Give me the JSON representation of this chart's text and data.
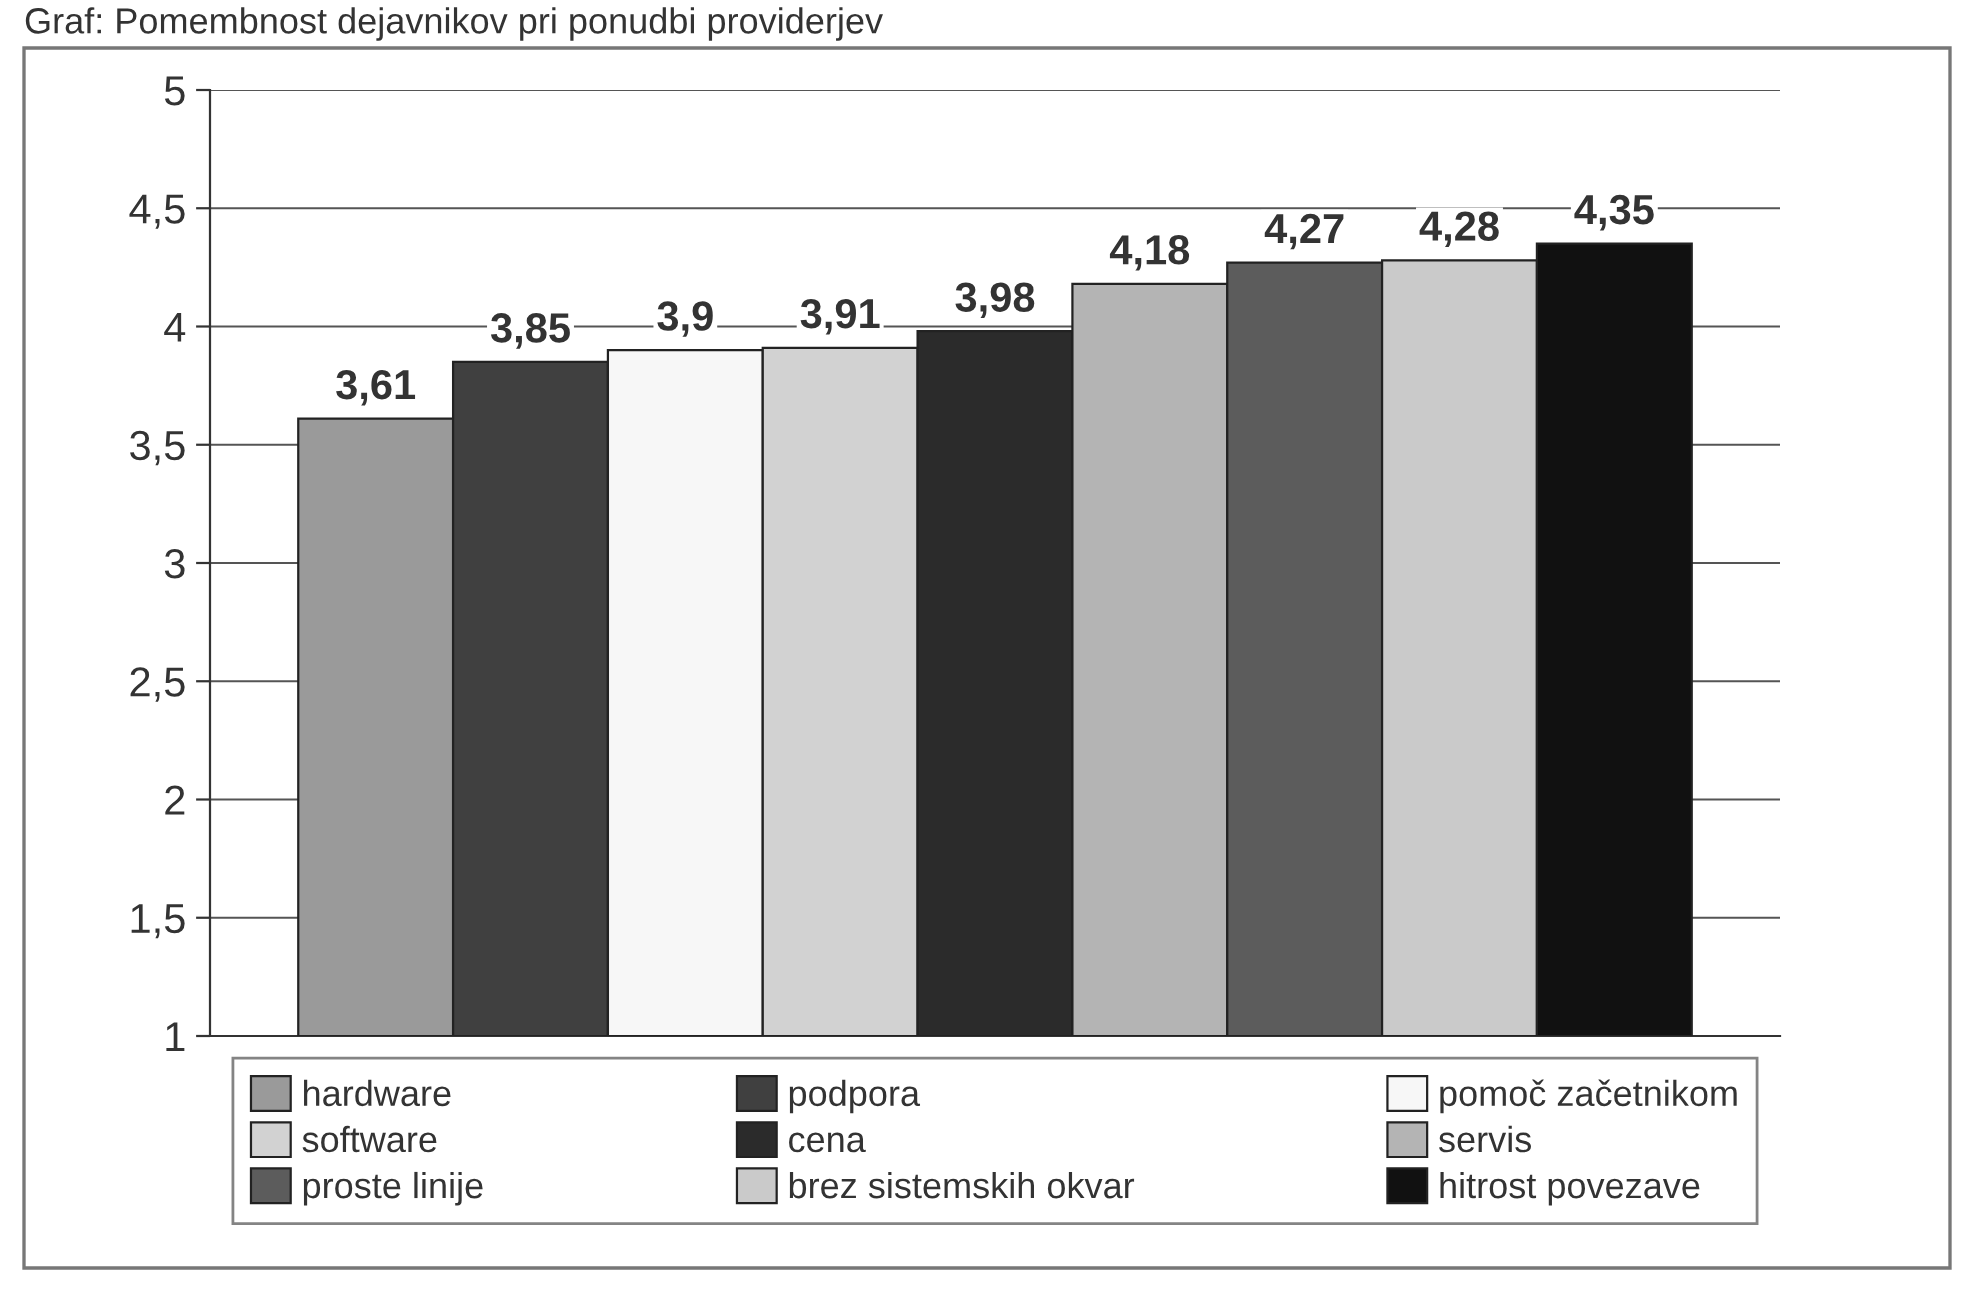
{
  "chart_data": {
    "type": "bar",
    "title": "Graf: Pomembnost dejavnikov pri ponudbi providerjev",
    "categories": [
      null
    ],
    "series": [
      {
        "name": "hardware",
        "color": "#9a9a9a",
        "values": [
          3.61
        ],
        "value_labels": [
          "3,61"
        ]
      },
      {
        "name": "podpora",
        "color": "#404040",
        "values": [
          3.85
        ],
        "value_labels": [
          "3,85"
        ]
      },
      {
        "name": "pomoč začetnikom",
        "color": "#f7f7f7",
        "values": [
          3.9
        ],
        "value_labels": [
          "3,9"
        ]
      },
      {
        "name": "software",
        "color": "#d2d2d2",
        "values": [
          3.91
        ],
        "value_labels": [
          "3,91"
        ]
      },
      {
        "name": "cena",
        "color": "#2b2b2b",
        "values": [
          3.98
        ],
        "value_labels": [
          "3,98"
        ]
      },
      {
        "name": "servis",
        "color": "#b4b4b4",
        "values": [
          4.18
        ],
        "value_labels": [
          "4,18"
        ]
      },
      {
        "name": "proste linije",
        "color": "#5c5c5c",
        "values": [
          4.27
        ],
        "value_labels": [
          "4,27"
        ]
      },
      {
        "name": "brez sistemskih okvar",
        "color": "#cacaca",
        "values": [
          4.28
        ],
        "value_labels": [
          "4,28"
        ]
      },
      {
        "name": "hitrost povezave",
        "color": "#111111",
        "values": [
          4.35
        ],
        "value_labels": [
          "4,35"
        ]
      }
    ],
    "ylim": [
      1,
      5
    ],
    "yticks": [
      1,
      {
        "value": 1.5,
        "label": "1,5"
      },
      2,
      {
        "value": 2.5,
        "label": "2,5"
      },
      3,
      {
        "value": 3.5,
        "label": "3,5"
      },
      4,
      {
        "value": 4.5,
        "label": "4,5"
      },
      5
    ],
    "grid": "y",
    "legend": "bottom"
  }
}
